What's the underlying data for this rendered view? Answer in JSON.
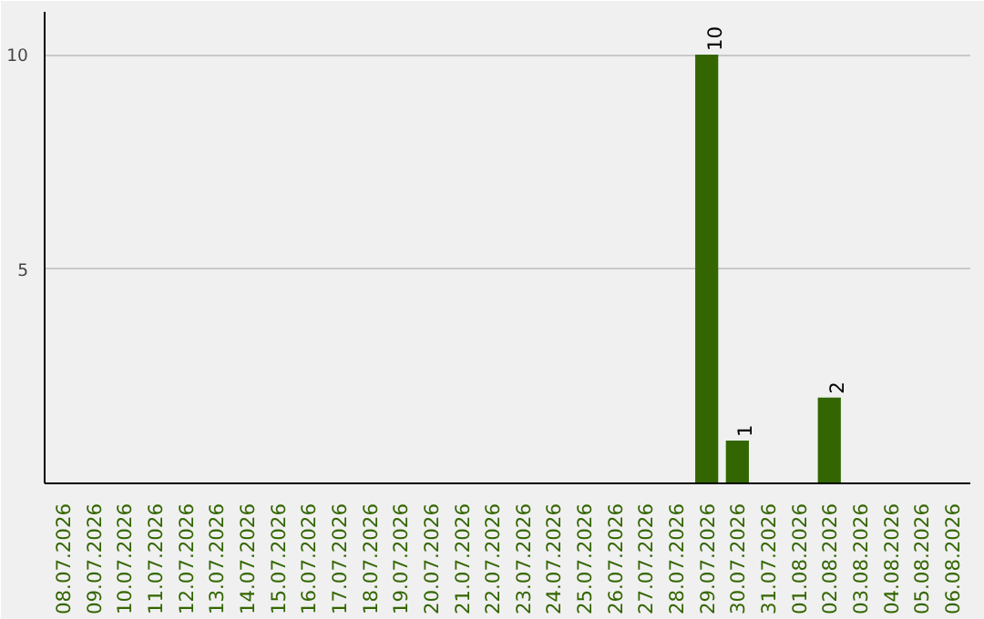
{
  "chart_data": {
    "type": "bar",
    "categories": [
      "08.07.2026",
      "09.07.2026",
      "10.07.2026",
      "11.07.2026",
      "12.07.2026",
      "13.07.2026",
      "14.07.2026",
      "15.07.2026",
      "16.07.2026",
      "17.07.2026",
      "18.07.2026",
      "19.07.2026",
      "20.07.2026",
      "21.07.2026",
      "22.07.2026",
      "23.07.2026",
      "24.07.2026",
      "25.07.2026",
      "26.07.2026",
      "27.07.2026",
      "28.07.2026",
      "29.07.2026",
      "30.07.2026",
      "31.07.2026",
      "01.08.2026",
      "02.08.2026",
      "03.08.2026",
      "04.08.2026",
      "05.08.2026",
      "06.08.2026"
    ],
    "values": [
      0,
      0,
      0,
      0,
      0,
      0,
      0,
      0,
      0,
      0,
      0,
      0,
      0,
      0,
      0,
      0,
      0,
      0,
      0,
      0,
      0,
      10,
      1,
      0,
      0,
      2,
      0,
      0,
      0,
      0
    ],
    "value_labels": [
      null,
      null,
      null,
      null,
      null,
      null,
      null,
      null,
      null,
      null,
      null,
      null,
      null,
      null,
      null,
      null,
      null,
      null,
      null,
      null,
      null,
      "10",
      "1",
      null,
      null,
      "2",
      null,
      null,
      null,
      null
    ],
    "color": "#336600",
    "ylim": [
      0,
      11
    ],
    "yticks": [
      5,
      10
    ],
    "grid": "y"
  }
}
